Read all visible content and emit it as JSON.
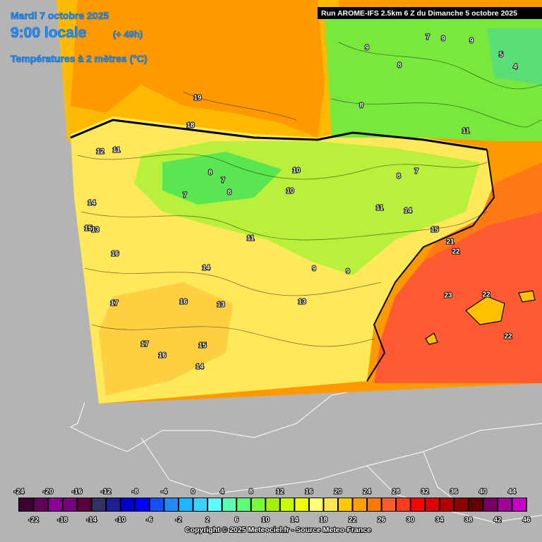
{
  "header": {
    "date": "Mardi 7 octobre 2025",
    "time": "9:00 locale",
    "lead": "(+ 49h)",
    "title": "Températures à 2 mètres (°C)",
    "run": "Run AROME-IFS 2.5km 6 Z du Dimanche 5 octobre 2025"
  },
  "contour_labels": [
    "19",
    "18",
    "12",
    "11",
    "14",
    "13",
    "16",
    "17",
    "15",
    "14",
    "16",
    "13",
    "15",
    "14",
    "16",
    "17",
    "11",
    "8",
    "7",
    "8",
    "7",
    "10",
    "11",
    "9",
    "9",
    "10",
    "14",
    "15",
    "21",
    "22",
    "23",
    "22",
    "22",
    "9",
    "8",
    "7",
    "9",
    "9",
    "8",
    "5",
    "4",
    "11",
    "8",
    "7",
    "13"
  ],
  "legend": {
    "ticks": [
      -24,
      -22,
      -20,
      -18,
      -16,
      -14,
      -12,
      -10,
      -8,
      -6,
      -4,
      -2,
      0,
      2,
      4,
      6,
      8,
      10,
      12,
      14,
      16,
      18,
      20,
      22,
      24,
      26,
      28,
      30,
      32,
      34,
      36,
      38,
      40,
      42,
      44,
      46
    ],
    "colors": [
      "#3c0032",
      "#64005a",
      "#8c0096",
      "#780078",
      "#5a003c",
      "#323264",
      "#1e1e96",
      "#0000c8",
      "#0000ff",
      "#1450ff",
      "#1e8cff",
      "#1eb4ff",
      "#3cd2ff",
      "#5affff",
      "#5affb4",
      "#5aff78",
      "#78ff3c",
      "#a0f000",
      "#c8ff00",
      "#f0ff00",
      "#ffff78",
      "#ffe650",
      "#ffc800",
      "#ffa000",
      "#ff7800",
      "#ff5a28",
      "#ff3c1e",
      "#ff0000",
      "#dc0000",
      "#b40000",
      "#8c0000",
      "#640000",
      "#780064",
      "#a00096",
      "#c800c8",
      "#ff00ff",
      "#ff78ff"
    ]
  },
  "footer": "Copyright © 2025 Meteociel.fr - Source Meteo-France"
}
